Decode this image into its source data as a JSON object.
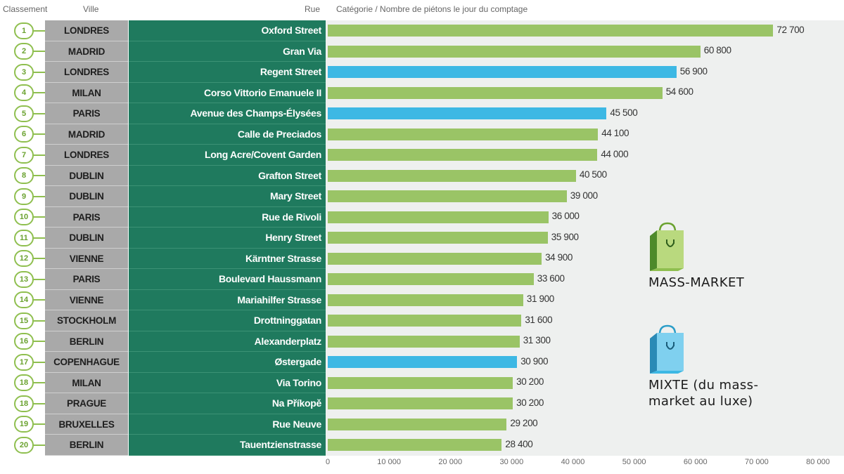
{
  "headers": {
    "rank": "Classement",
    "city": "Ville",
    "street": "Rue",
    "category": "Catégorie / Nombre de piétons le jour du comptage"
  },
  "colors": {
    "mass_market": "#9ac466",
    "mixte": "#3db8e4",
    "street_bg": "#1f7a5e",
    "city_bg": "#a9a9a9"
  },
  "legend": {
    "mass_market": "MASS-MARKET",
    "mixte_line1": "MIXTE (du mass-",
    "mixte_line2": "market au luxe)"
  },
  "chart_data": {
    "type": "bar",
    "orientation": "horizontal",
    "title": "Catégorie / Nombre de piétons le jour du comptage",
    "xlim": [
      0,
      80000
    ],
    "x_ticks": [
      "0",
      "10 000",
      "20 000",
      "30 000",
      "40 000",
      "50 000",
      "60 000",
      "70 000",
      "80 000"
    ],
    "rows": [
      {
        "rank": "1",
        "city": "LONDRES",
        "street": "Oxford Street",
        "value": 72700,
        "label": "72 700",
        "category": "mass_market"
      },
      {
        "rank": "2",
        "city": "MADRID",
        "street": "Gran Via",
        "value": 60800,
        "label": "60 800",
        "category": "mass_market"
      },
      {
        "rank": "3",
        "city": "LONDRES",
        "street": "Regent Street",
        "value": 56900,
        "label": "56 900",
        "category": "mixte"
      },
      {
        "rank": "4",
        "city": "MILAN",
        "street": "Corso Vittorio Emanuele II",
        "value": 54600,
        "label": "54 600",
        "category": "mass_market"
      },
      {
        "rank": "5",
        "city": "PARIS",
        "street": "Avenue des Champs-Élysées",
        "value": 45500,
        "label": "45 500",
        "category": "mixte"
      },
      {
        "rank": "6",
        "city": "MADRID",
        "street": "Calle de Preciados",
        "value": 44100,
        "label": "44 100",
        "category": "mass_market"
      },
      {
        "rank": "7",
        "city": "LONDRES",
        "street": "Long Acre/Covent Garden",
        "value": 44000,
        "label": "44 000",
        "category": "mass_market"
      },
      {
        "rank": "8",
        "city": "DUBLIN",
        "street": "Grafton Street",
        "value": 40500,
        "label": "40 500",
        "category": "mass_market"
      },
      {
        "rank": "9",
        "city": "DUBLIN",
        "street": "Mary Street",
        "value": 39000,
        "label": "39 000",
        "category": "mass_market"
      },
      {
        "rank": "10",
        "city": "PARIS",
        "street": "Rue de Rivoli",
        "value": 36000,
        "label": "36 000",
        "category": "mass_market"
      },
      {
        "rank": "11",
        "city": "DUBLIN",
        "street": "Henry Street",
        "value": 35900,
        "label": "35 900",
        "category": "mass_market"
      },
      {
        "rank": "12",
        "city": "VIENNE",
        "street": "Kärntner Strasse",
        "value": 34900,
        "label": "34 900",
        "category": "mass_market"
      },
      {
        "rank": "13",
        "city": "PARIS",
        "street": "Boulevard Haussmann",
        "value": 33600,
        "label": "33 600",
        "category": "mass_market"
      },
      {
        "rank": "14",
        "city": "VIENNE",
        "street": "Mariahilfer Strasse",
        "value": 31900,
        "label": "31 900",
        "category": "mass_market"
      },
      {
        "rank": "15",
        "city": "STOCKHOLM",
        "street": "Drottninggatan",
        "value": 31600,
        "label": "31 600",
        "category": "mass_market"
      },
      {
        "rank": "16",
        "city": "BERLIN",
        "street": "Alexanderplatz",
        "value": 31300,
        "label": "31 300",
        "category": "mass_market"
      },
      {
        "rank": "17",
        "city": "COPENHAGUE",
        "street": "Østergade",
        "value": 30900,
        "label": "30 900",
        "category": "mixte"
      },
      {
        "rank": "18",
        "city": "MILAN",
        "street": "Via Torino",
        "value": 30200,
        "label": "30 200",
        "category": "mass_market"
      },
      {
        "rank": "18",
        "city": "PRAGUE",
        "street": "Na Příkopě",
        "value": 30200,
        "label": "30 200",
        "category": "mass_market"
      },
      {
        "rank": "19",
        "city": "BRUXELLES",
        "street": "Rue Neuve",
        "value": 29200,
        "label": "29 200",
        "category": "mass_market"
      },
      {
        "rank": "20",
        "city": "BERLIN",
        "street": "Tauentzienstrasse",
        "value": 28400,
        "label": "28 400",
        "category": "mass_market"
      }
    ]
  }
}
